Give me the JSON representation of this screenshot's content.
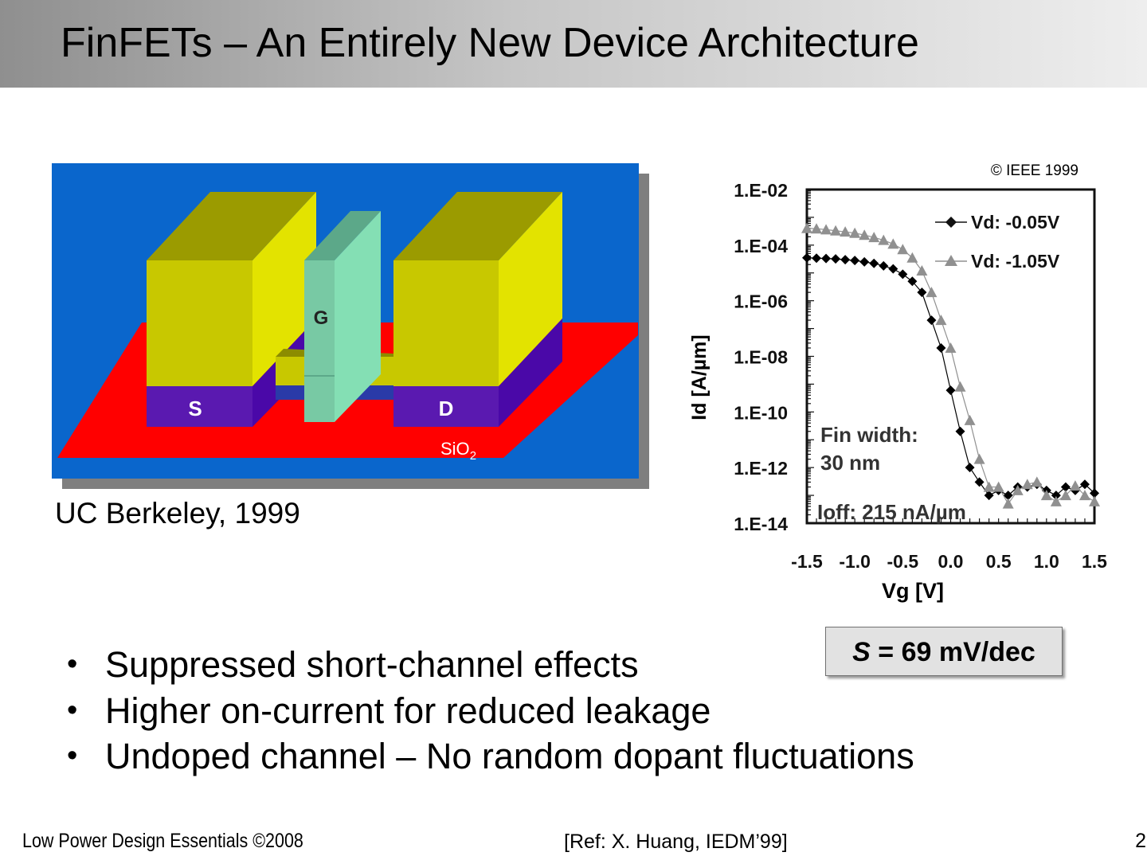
{
  "slide": {
    "title": "FinFETs – An Entirely New Device Architecture",
    "diagram": {
      "gate_label": "G",
      "source_label": "S",
      "drain_label": "D",
      "oxide_label": "SiO",
      "oxide_subscript": "2",
      "caption": "UC Berkeley, 1999"
    },
    "s_box": {
      "symbol": "S",
      "text": " = 69 mV/dec"
    },
    "bullets": [
      "Suppressed short-channel effects",
      "Higher on-current for reduced leakage",
      "Undoped channel – No random dopant fluctuations"
    ],
    "footer": {
      "left": "Low Power Design Essentials ©2008",
      "ref": "[Ref: X. Huang, IEDM’99]",
      "page": "2."
    }
  },
  "chart_data": {
    "type": "scatter",
    "copyright": "© IEEE 1999",
    "xlabel": "Vg [V]",
    "ylabel": "Id [A/µm]",
    "xlim": [
      -1.5,
      1.5
    ],
    "ylim_exp": [
      -14,
      -2
    ],
    "y_log": true,
    "x_ticks": [
      "-1.5",
      "-1.0",
      "-0.5",
      "0.0",
      "0.5",
      "1.0",
      "1.5"
    ],
    "y_ticks": [
      "1.E-02",
      "1.E-04",
      "1.E-06",
      "1.E-08",
      "1.E-10",
      "1.E-12",
      "1.E-14"
    ],
    "annotation_fin": [
      "Fin width:",
      "30 nm"
    ],
    "annotation_ioff": "Ioff: 215 nA/µm",
    "legend_position": "top-right",
    "series": [
      {
        "name": "Vd: -0.05V",
        "marker": "diamond",
        "color": "#000000",
        "x": [
          -1.5,
          -1.4,
          -1.3,
          -1.2,
          -1.1,
          -1.0,
          -0.9,
          -0.8,
          -0.7,
          -0.6,
          -0.5,
          -0.4,
          -0.3,
          -0.2,
          -0.1,
          0.0,
          0.1,
          0.2,
          0.3,
          0.4,
          0.5,
          0.6,
          0.7,
          0.8,
          0.9,
          1.0,
          1.1,
          1.2,
          1.3,
          1.4,
          1.5
        ],
        "y": [
          "3.5e-5",
          "3.4e-5",
          "3.3e-5",
          "3.2e-5",
          "3.0e-5",
          "2.8e-5",
          "2.5e-5",
          "2.2e-5",
          "1.8e-5",
          "1.4e-5",
          "9e-6",
          "5e-6",
          "2e-6",
          "2e-7",
          "2e-8",
          "6e-10",
          "2e-11",
          "1e-12",
          "3e-13",
          "1e-13",
          "1.5e-13",
          "1e-13",
          "2e-13",
          "2e-13",
          "2.5e-13",
          "1.5e-13",
          "1e-13",
          "2e-13",
          "1.5e-13",
          "2.5e-13",
          "1.2e-13"
        ]
      },
      {
        "name": "Vd: -1.05V",
        "marker": "triangle",
        "color": "#909090",
        "x": [
          -1.5,
          -1.4,
          -1.3,
          -1.2,
          -1.1,
          -1.0,
          -0.9,
          -0.8,
          -0.7,
          -0.6,
          -0.5,
          -0.4,
          -0.3,
          -0.2,
          -0.1,
          0.0,
          0.1,
          0.2,
          0.3,
          0.4,
          0.5,
          0.6,
          0.7,
          0.8,
          0.9,
          1.0,
          1.1,
          1.2,
          1.3,
          1.4,
          1.5
        ],
        "y": [
          "4e-4",
          "3.9e-4",
          "3.6e-4",
          "3.3e-4",
          "3e-4",
          "2.7e-4",
          "2.3e-4",
          "1.9e-4",
          "1.5e-4",
          "1.1e-4",
          "7e-5",
          "3.5e-5",
          "1.2e-5",
          "2e-6",
          "2e-7",
          "2e-8",
          "8e-10",
          "5e-11",
          "2e-12",
          "2e-13",
          "2e-13",
          "5e-14",
          "1.5e-13",
          "2.5e-13",
          "3e-13",
          "1e-13",
          "6e-14",
          "1e-13",
          "2.2e-13",
          "1e-13",
          "6e-14"
        ]
      }
    ]
  },
  "colors": {
    "background_blue": "#0a66cc",
    "oxide_red": "#ff0000",
    "silicon_yellow": "#c8c800",
    "gate_green": "#84dfb4",
    "doping_purple": "#5a19b0"
  }
}
